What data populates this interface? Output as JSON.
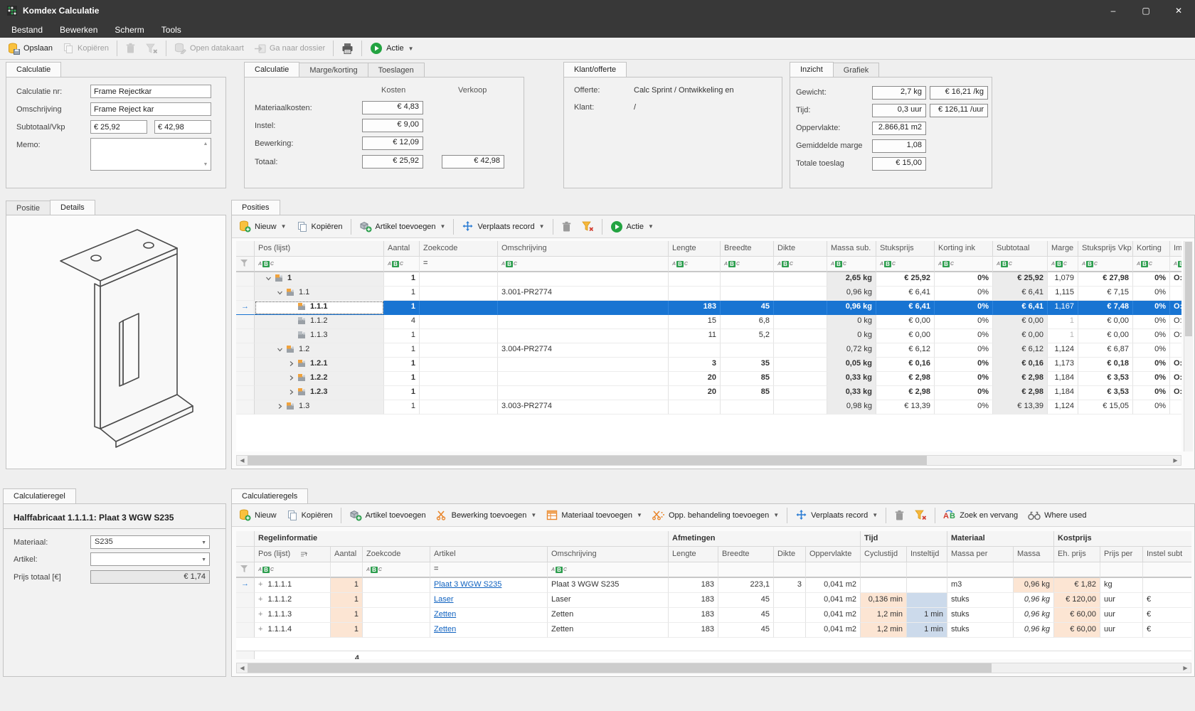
{
  "window": {
    "title": "Komdex Calculatie",
    "minimize": "–",
    "maximize": "▢",
    "close": "✕"
  },
  "menu": {
    "items": [
      "Bestand",
      "Bewerken",
      "Scherm",
      "Tools"
    ]
  },
  "main_toolbar": {
    "items": [
      {
        "icon": "save",
        "label": "Opslaan"
      },
      {
        "icon": "copy",
        "label": "Kopiëren",
        "disabled": true
      },
      {
        "sep": true
      },
      {
        "icon": "trash",
        "disabled": true
      },
      {
        "icon": "filterx",
        "disabled": true
      },
      {
        "sep": true
      },
      {
        "icon": "dbpencil",
        "label": "Open datakaart",
        "disabled": true
      },
      {
        "icon": "goto",
        "label": "Ga naar dossier",
        "disabled": true
      },
      {
        "sep": true
      },
      {
        "icon": "print"
      },
      {
        "sep": true
      },
      {
        "icon": "play",
        "label": "Actie",
        "dd": true
      }
    ]
  },
  "calculatie_panel": {
    "tab": "Calculatie",
    "nr_label": "Calculatie nr:",
    "nr_value": "Frame Rejectkar",
    "omschrijving_label": "Omschrijving",
    "omschrijving_value": "Frame Reject kar",
    "subtotaal_label": "Subtotaal/Vkp",
    "subtotaal_value": "€ 25,92",
    "vkp_value": "€ 42,98",
    "memo_label": "Memo:"
  },
  "kosten_panel": {
    "tabs": [
      "Calculatie",
      "Marge/korting",
      "Toeslagen"
    ],
    "col_kosten": "Kosten",
    "col_verkoop": "Verkoop",
    "rows": [
      {
        "label": "Materiaalkosten:",
        "kosten": "€ 4,83",
        "verkoop": ""
      },
      {
        "label": "Instel:",
        "kosten": "€ 9,00",
        "verkoop": ""
      },
      {
        "label": "Bewerking:",
        "kosten": "€ 12,09",
        "verkoop": ""
      },
      {
        "label": "Totaal:",
        "kosten": "€ 25,92",
        "verkoop": "€ 42,98"
      }
    ]
  },
  "klant_panel": {
    "tab": "Klant/offerte",
    "offerte_label": "Offerte:",
    "offerte_value": "Calc Sprint / Ontwikkeling en",
    "klant_label": "Klant:",
    "klant_value": "/"
  },
  "inzicht_panel": {
    "tabs": [
      "Inzicht",
      "Grafiek"
    ],
    "rows": [
      {
        "label": "Gewicht:",
        "value": "2,7 kg",
        "value2": "€ 16,21 /kg"
      },
      {
        "label": "Tijd:",
        "value": "0,3 uur",
        "value2": "€ 126,11 /uur"
      },
      {
        "label": "Oppervlakte:",
        "value": "2.866,81 m2",
        "value2": ""
      },
      {
        "label": "Gemiddelde marge",
        "value": "1,08",
        "value2": ""
      },
      {
        "label": "Totale toeslag",
        "value": "€ 15,00",
        "value2": ""
      }
    ]
  },
  "detail_panel": {
    "tabs": [
      "Positie",
      "Details"
    ]
  },
  "posities": {
    "tab": "Posities",
    "toolbar": [
      {
        "icon": "new",
        "label": "Nieuw",
        "dd": true
      },
      {
        "icon": "copy",
        "label": "Kopiëren"
      },
      {
        "sep": true
      },
      {
        "icon": "boxplus",
        "label": "Artikel toevoegen",
        "dd": true
      },
      {
        "sep": true
      },
      {
        "icon": "move",
        "label": "Verplaats record",
        "dd": true
      },
      {
        "sep": true
      },
      {
        "icon": "trash"
      },
      {
        "icon": "filterx"
      },
      {
        "sep": true
      },
      {
        "icon": "play",
        "label": "Actie",
        "dd": true
      }
    ],
    "columns": [
      "Pos (lijst)",
      "Aantal",
      "Zoekcode",
      "Omschrijving",
      "Lengte",
      "Breedte",
      "Dikte",
      "Massa sub.",
      "Stuksprijs",
      "Korting ink",
      "Subtotaal",
      "Marge",
      "Stuksprijs Vkp",
      "Korting",
      "Im"
    ],
    "filters": [
      "abc",
      "abc",
      "eq",
      "abc",
      "abc",
      "abc",
      "abc",
      "abc",
      "abc",
      "abc",
      "abc",
      "abc",
      "abc",
      "abc",
      "abc"
    ],
    "rows": [
      {
        "level": 0,
        "chev": "down",
        "icon": "branch",
        "pos": "1",
        "bold": true,
        "sel": false,
        "aantal": "1",
        "zoek": "",
        "oms": "",
        "lengte": "",
        "breedte": "",
        "dikte": "",
        "massa": "2,65 kg",
        "stuks": "€ 25,92",
        "kort1": "0%",
        "subt": "€ 25,92",
        "marge": "1,079",
        "margegray": false,
        "vkp": "€ 27,98",
        "kort2": "0%",
        "im": "O:"
      },
      {
        "level": 1,
        "chev": "down",
        "icon": "branch",
        "pos": "1.1",
        "bold": false,
        "sel": false,
        "aantal": "1",
        "zoek": "",
        "oms": "3.001-PR2774",
        "lengte": "",
        "breedte": "",
        "dikte": "",
        "massa": "0,96 kg",
        "stuks": "€ 6,41",
        "kort1": "0%",
        "subt": "€ 6,41",
        "marge": "1,115",
        "margegray": false,
        "vkp": "€ 7,15",
        "kort2": "0%",
        "im": ""
      },
      {
        "level": 2,
        "chev": "right",
        "icon": "branch",
        "pos": "1.1.1",
        "bold": true,
        "sel": true,
        "aantal": "1",
        "zoek": "",
        "oms": "",
        "lengte": "183",
        "breedte": "45",
        "dikte": "",
        "massa": "0,96 kg",
        "stuks": "€ 6,41",
        "kort1": "0%",
        "subt": "€ 6,41",
        "marge": "1,167",
        "margegray": false,
        "vkp": "€ 7,48",
        "kort2": "0%",
        "im": "O:"
      },
      {
        "level": 2,
        "chev": "none",
        "icon": "leaf",
        "pos": "1.1.2",
        "bold": false,
        "sel": false,
        "aantal": "4",
        "zoek": "",
        "oms": "",
        "lengte": "15",
        "breedte": "6,8",
        "dikte": "",
        "massa": "0 kg",
        "stuks": "€ 0,00",
        "kort1": "0%",
        "subt": "€ 0,00",
        "marge": "1",
        "margegray": true,
        "vkp": "€ 0,00",
        "kort2": "0%",
        "im": "O:"
      },
      {
        "level": 2,
        "chev": "none",
        "icon": "leaf",
        "pos": "1.1.3",
        "bold": false,
        "sel": false,
        "aantal": "1",
        "zoek": "",
        "oms": "",
        "lengte": "11",
        "breedte": "5,2",
        "dikte": "",
        "massa": "0 kg",
        "stuks": "€ 0,00",
        "kort1": "0%",
        "subt": "€ 0,00",
        "marge": "1",
        "margegray": true,
        "vkp": "€ 0,00",
        "kort2": "0%",
        "im": "O:"
      },
      {
        "level": 1,
        "chev": "down",
        "icon": "branch",
        "pos": "1.2",
        "bold": false,
        "sel": false,
        "aantal": "1",
        "zoek": "",
        "oms": "3.004-PR2774",
        "lengte": "",
        "breedte": "",
        "dikte": "",
        "massa": "0,72 kg",
        "stuks": "€ 6,12",
        "kort1": "0%",
        "subt": "€ 6,12",
        "marge": "1,124",
        "margegray": false,
        "vkp": "€ 6,87",
        "kort2": "0%",
        "im": ""
      },
      {
        "level": 2,
        "chev": "right",
        "icon": "branch",
        "pos": "1.2.1",
        "bold": true,
        "sel": false,
        "aantal": "1",
        "zoek": "",
        "oms": "",
        "lengte": "3",
        "breedte": "35",
        "dikte": "",
        "massa": "0,05 kg",
        "stuks": "€ 0,16",
        "kort1": "0%",
        "subt": "€ 0,16",
        "marge": "1,173",
        "margegray": false,
        "vkp": "€ 0,18",
        "kort2": "0%",
        "im": "O:"
      },
      {
        "level": 2,
        "chev": "right",
        "icon": "branch",
        "pos": "1.2.2",
        "bold": true,
        "sel": false,
        "aantal": "1",
        "zoek": "",
        "oms": "",
        "lengte": "20",
        "breedte": "85",
        "dikte": "",
        "massa": "0,33 kg",
        "stuks": "€ 2,98",
        "kort1": "0%",
        "subt": "€ 2,98",
        "marge": "1,184",
        "margegray": false,
        "vkp": "€ 3,53",
        "kort2": "0%",
        "im": "O:"
      },
      {
        "level": 2,
        "chev": "right",
        "icon": "branch",
        "pos": "1.2.3",
        "bold": true,
        "sel": false,
        "aantal": "1",
        "zoek": "",
        "oms": "",
        "lengte": "20",
        "breedte": "85",
        "dikte": "",
        "massa": "0,33 kg",
        "stuks": "€ 2,98",
        "kort1": "0%",
        "subt": "€ 2,98",
        "marge": "1,184",
        "margegray": false,
        "vkp": "€ 3,53",
        "kort2": "0%",
        "im": "O:"
      },
      {
        "level": 1,
        "chev": "right",
        "icon": "branch",
        "pos": "1.3",
        "bold": false,
        "sel": false,
        "aantal": "1",
        "zoek": "",
        "oms": "3.003-PR2774",
        "lengte": "",
        "breedte": "",
        "dikte": "",
        "massa": "0,98 kg",
        "stuks": "€ 13,39",
        "kort1": "0%",
        "subt": "€ 13,39",
        "marge": "1,124",
        "margegray": false,
        "vkp": "€ 15,05",
        "kort2": "0%",
        "im": ""
      }
    ]
  },
  "regel_panel": {
    "tab": "Calculatieregel",
    "heading": "Halffabricaat 1.1.1.1: Plaat 3 WGW S235",
    "materiaal_label": "Materiaal:",
    "materiaal_value": "S235",
    "artikel_label": "Artikel:",
    "artikel_value": "",
    "prijs_label": "Prijs totaal [€]",
    "prijs_value": "€ 1,74"
  },
  "regels": {
    "tab": "Calculatieregels",
    "toolbar": [
      {
        "icon": "new",
        "label": "Nieuw"
      },
      {
        "icon": "copy",
        "label": "Kopiëren"
      },
      {
        "sep": true
      },
      {
        "icon": "boxplus",
        "label": "Artikel toevoegen"
      },
      {
        "icon": "scissors",
        "label": "Bewerking toevoegen",
        "dd": true
      },
      {
        "icon": "matgrid",
        "label": "Materiaal toevoegen",
        "dd": true
      },
      {
        "icon": "oppicon",
        "label": "Opp. behandeling toevoegen",
        "dd": true
      },
      {
        "sep": true
      },
      {
        "icon": "move",
        "label": "Verplaats record",
        "dd": true
      },
      {
        "sep": true
      },
      {
        "icon": "trash"
      },
      {
        "icon": "filterx"
      },
      {
        "sep": true
      },
      {
        "icon": "ab",
        "label": "Zoek en vervang"
      },
      {
        "icon": "binoc",
        "label": "Where used"
      }
    ],
    "groups": [
      "Regelinformatie",
      "Afmetingen",
      "Tijd",
      "Materiaal",
      "Kostprijs"
    ],
    "columns": [
      "Pos (lijst)",
      "Aantal",
      "Zoekcode",
      "Artikel",
      "Omschrijving",
      "Lengte",
      "Breedte",
      "Dikte",
      "Oppervlakte",
      "Cyclustijd",
      "Insteltijd",
      "Massa per",
      "Massa",
      "Eh. prijs",
      "Prijs per",
      "Instel subt"
    ],
    "filters": [
      "abc",
      "",
      "abc",
      "eq",
      "abc",
      "",
      "",
      "",
      "",
      "",
      "",
      "",
      "",
      "",
      "",
      ""
    ],
    "rows": [
      {
        "pos": "1.1.1.1",
        "aantal": "1",
        "zoek": "",
        "artikel": "Plaat 3 WGW S235",
        "oms": "Plaat 3 WGW S235",
        "lengte": "183",
        "breedte": "223,1",
        "dikte": "3",
        "opp": "0,041 m2",
        "cyc": "",
        "instel": "",
        "instelblue": false,
        "massaper": "m3",
        "massa": "0,96 kg",
        "massaital": false,
        "massapeach": true,
        "eh": "€ 1,82",
        "prijsper": "kg",
        "instelsub": ""
      },
      {
        "pos": "1.1.1.2",
        "aantal": "1",
        "zoek": "",
        "artikel": "Laser",
        "oms": "Laser",
        "lengte": "183",
        "breedte": "45",
        "dikte": "",
        "opp": "0,041 m2",
        "cyc": "0,136 min",
        "instel": "",
        "instelblue": true,
        "massaper": "stuks",
        "massa": "0,96 kg",
        "massaital": true,
        "massapeach": false,
        "eh": "€ 120,00",
        "prijsper": "uur",
        "instelsub": "€"
      },
      {
        "pos": "1.1.1.3",
        "aantal": "1",
        "zoek": "",
        "artikel": "Zetten",
        "oms": "Zetten",
        "lengte": "183",
        "breedte": "45",
        "dikte": "",
        "opp": "0,041 m2",
        "cyc": "1,2 min",
        "instel": "1 min",
        "instelblue": true,
        "massaper": "stuks",
        "massa": "0,96 kg",
        "massaital": true,
        "massapeach": false,
        "eh": "€ 60,00",
        "prijsper": "uur",
        "instelsub": "€"
      },
      {
        "pos": "1.1.1.4",
        "aantal": "1",
        "zoek": "",
        "artikel": "Zetten",
        "oms": "Zetten",
        "lengte": "183",
        "breedte": "45",
        "dikte": "",
        "opp": "0,041 m2",
        "cyc": "1,2 min",
        "instel": "1 min",
        "instelblue": true,
        "massaper": "stuks",
        "massa": "0,96 kg",
        "massaital": true,
        "massapeach": false,
        "eh": "€ 60,00",
        "prijsper": "uur",
        "instelsub": "€"
      }
    ],
    "footer_aantal": "4"
  }
}
